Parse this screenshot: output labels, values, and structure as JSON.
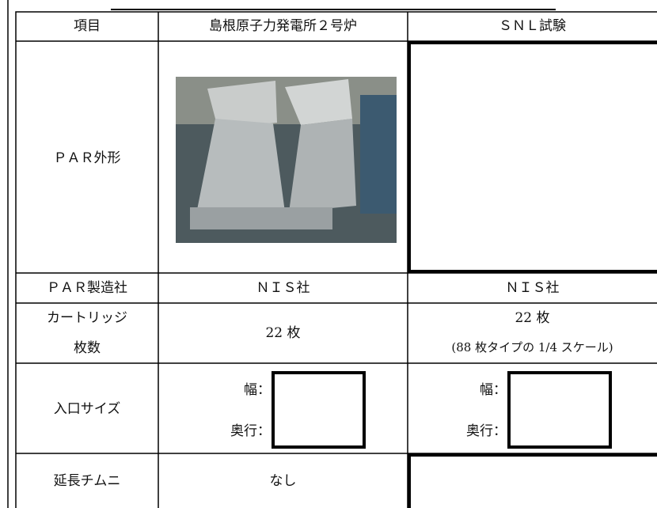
{
  "table": {
    "header": [
      "項目",
      "島根原子力発電所２号炉",
      "ＳＮＬ試験"
    ],
    "rows": [
      {
        "label": [
          "ＰＡＲ外形"
        ]
      },
      {
        "label": [
          "ＰＡＲ製造社"
        ],
        "col2": [
          "ＮＩＳ社"
        ],
        "col3": [
          "ＮＩＳ社"
        ]
      },
      {
        "label": [
          "カートリッジ",
          "枚数"
        ],
        "col2": [
          "22 枚"
        ],
        "col3": [
          "22 枚",
          "(88 枚タイプの 1/4 スケール)"
        ]
      },
      {
        "label": [
          "入口サイズ"
        ],
        "col2": [
          "幅：",
          "奥行："
        ],
        "col3": [
          "幅：",
          "奥行："
        ]
      },
      {
        "label": [
          "延長チムニ"
        ],
        "col2": [
          "なし"
        ]
      }
    ]
  }
}
